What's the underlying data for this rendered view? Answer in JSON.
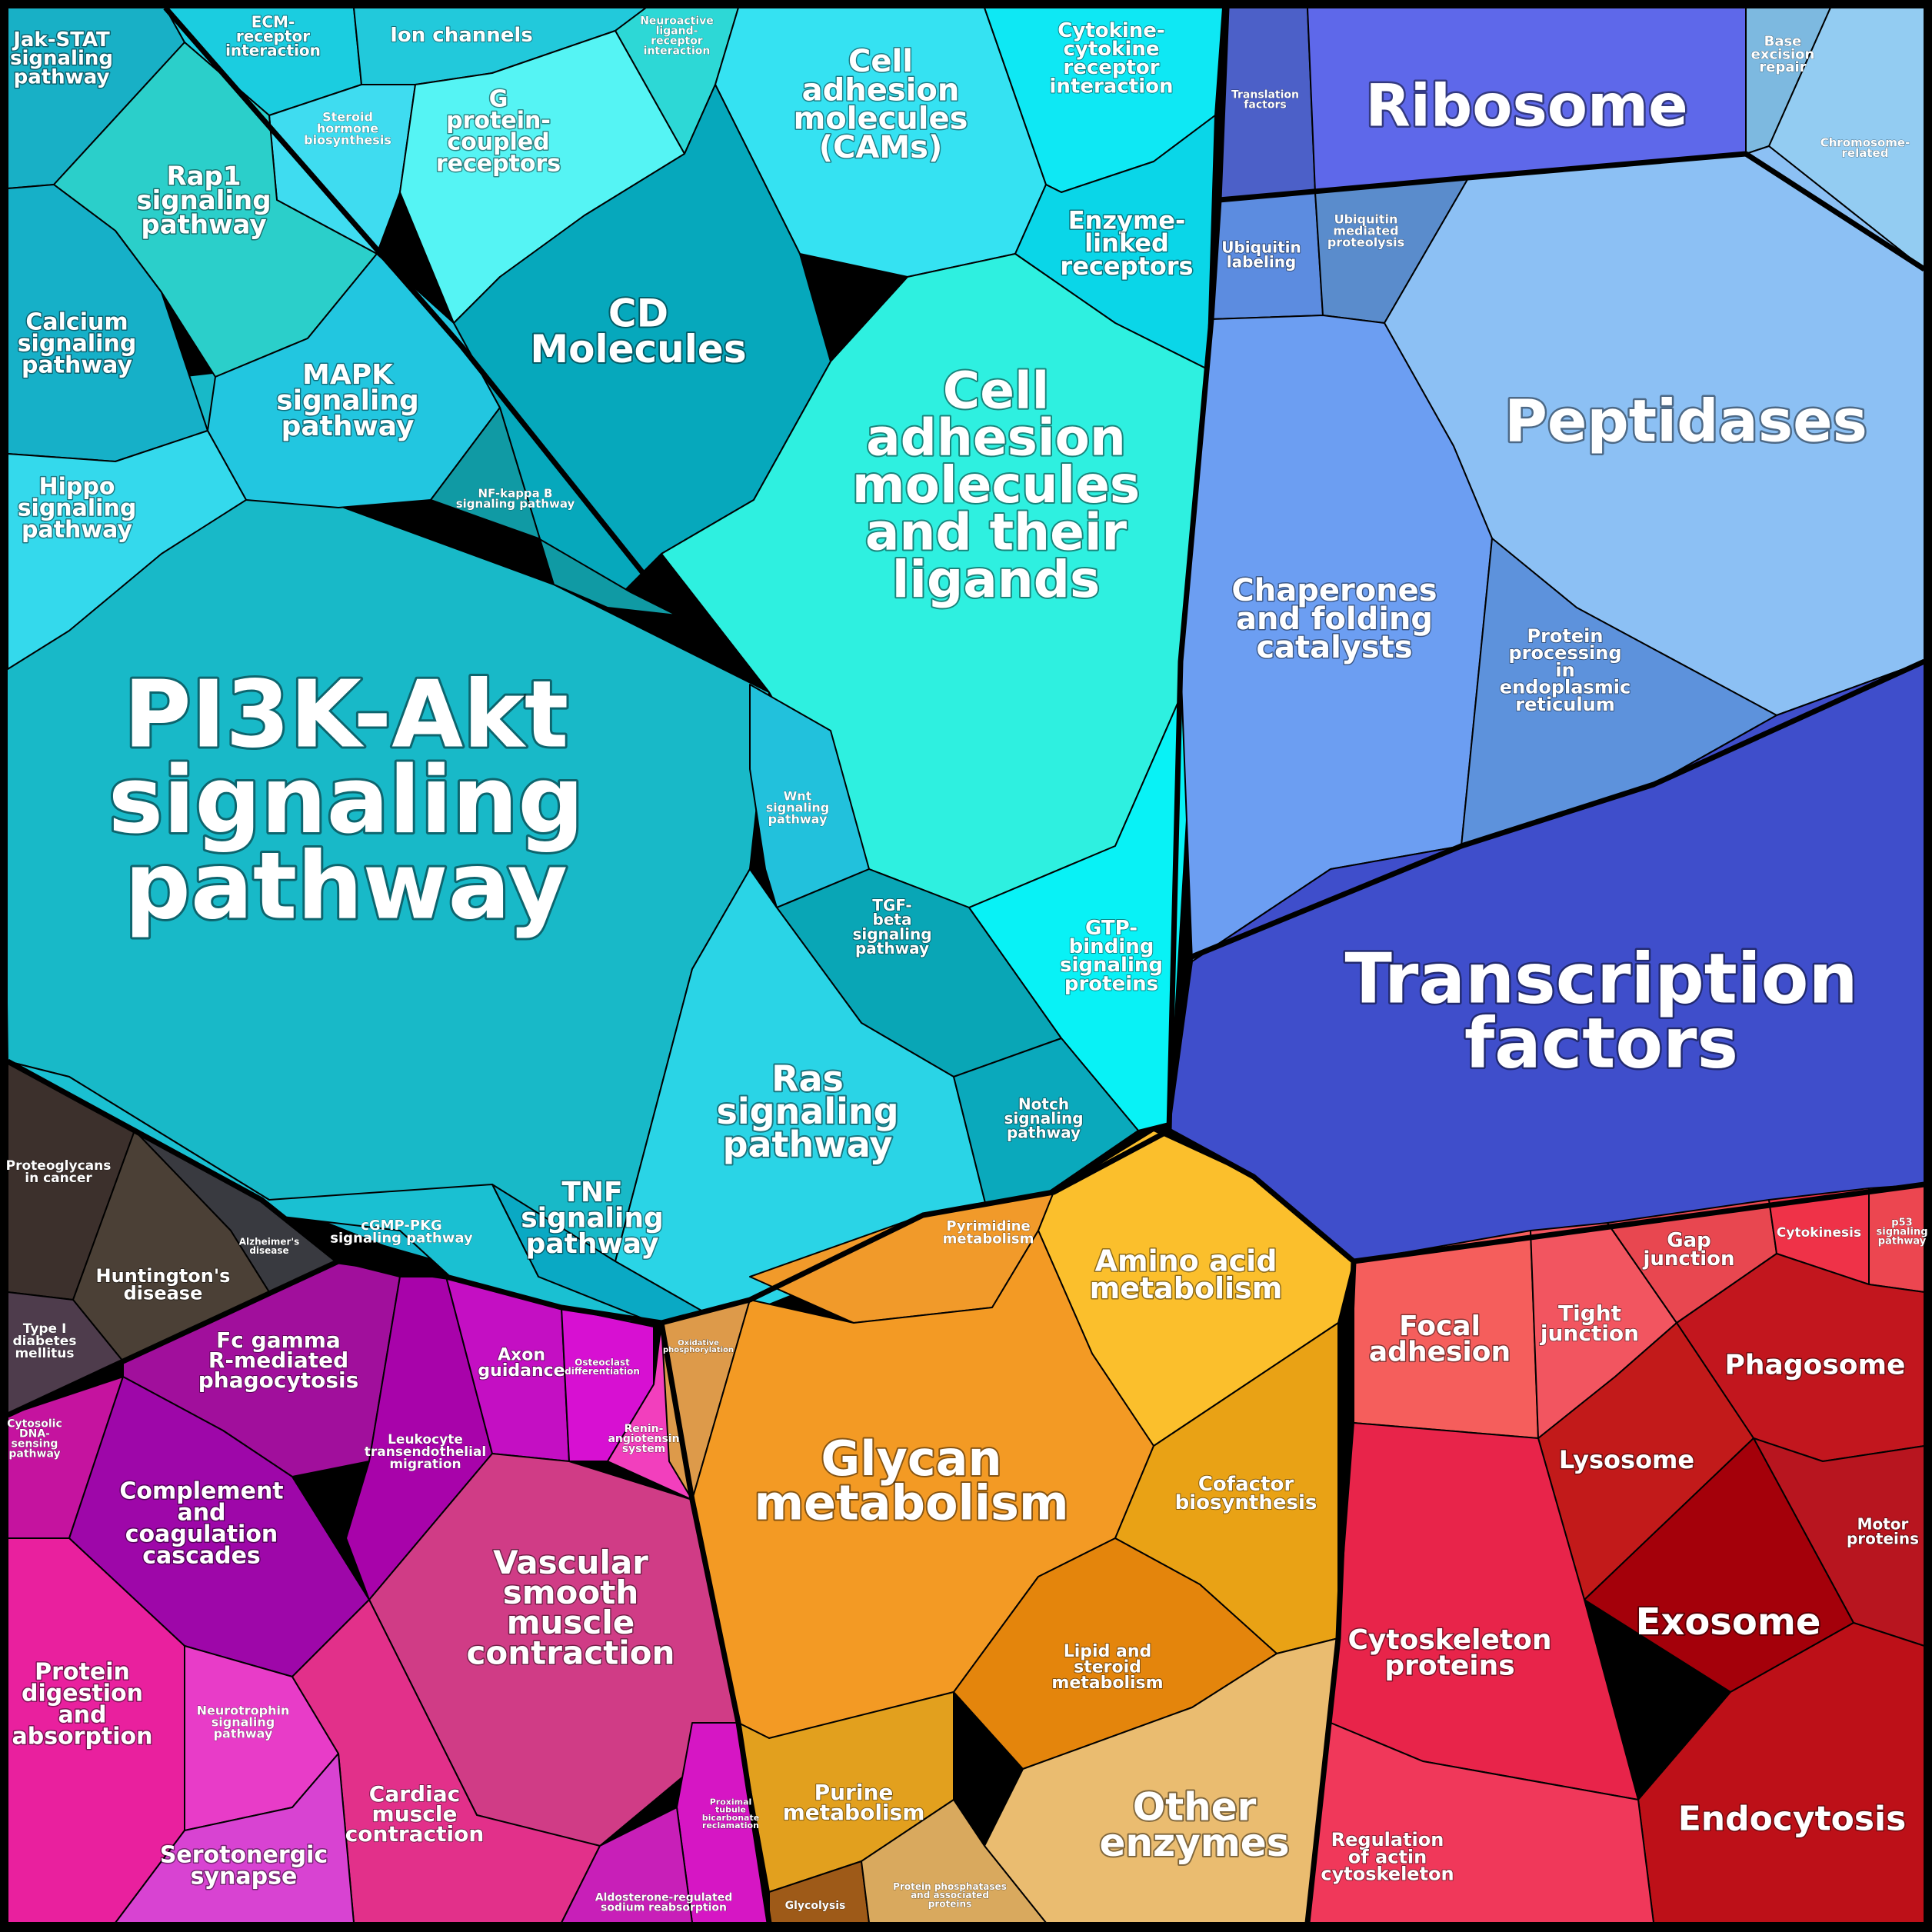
{
  "groups": {
    "signaling": {
      "label": [
        "PI3K-Akt",
        "signaling",
        "pathway"
      ],
      "color": "#1cc3cf",
      "cells": {
        "jak_stat": [
          "Jak-STAT",
          "signaling",
          "pathway"
        ],
        "ecm": [
          "ECM-",
          "receptor",
          "interaction"
        ],
        "ion_channels": [
          "Ion channels"
        ],
        "neuroactive": [
          "Neuroactive",
          "ligand-",
          "receptor",
          "interaction"
        ],
        "steroid_hormone": [
          "Steroid",
          "hormone",
          "biosynthesis"
        ],
        "gpcr": [
          "G",
          "protein-",
          "coupled",
          "receptors"
        ],
        "cams": [
          "Cell",
          "adhesion",
          "molecules",
          "(CAMs)"
        ],
        "cytokine": [
          "Cytokine-",
          "cytokine",
          "receptor",
          "interaction"
        ],
        "enzyme_linked": [
          "Enzyme-",
          "linked",
          "receptors"
        ],
        "rap1": [
          "Rap1",
          "signaling",
          "pathway"
        ],
        "calcium": [
          "Calcium",
          "signaling",
          "pathway"
        ],
        "mapk": [
          "MAPK",
          "signaling",
          "pathway"
        ],
        "cd_molecules": [
          "CD",
          "Molecules"
        ],
        "nfkb": [
          "NF-kappa B",
          "signaling pathway"
        ],
        "cam_ligands": [
          "Cell",
          "adhesion",
          "molecules",
          "and their",
          "ligands"
        ],
        "hippo": [
          "Hippo",
          "signaling",
          "pathway"
        ],
        "wnt": [
          "Wnt",
          "signaling",
          "pathway"
        ],
        "tgf_beta": [
          "TGF-",
          "beta",
          "signaling",
          "pathway"
        ],
        "gtp_binding": [
          "GTP-",
          "binding",
          "signaling",
          "proteins"
        ],
        "ras": [
          "Ras",
          "signaling",
          "pathway"
        ],
        "notch": [
          "Notch",
          "signaling",
          "pathway"
        ],
        "tnf": [
          "TNF",
          "signaling",
          "pathway"
        ],
        "cgmp_pkg": [
          "cGMP-PKG",
          "signaling pathway"
        ]
      }
    },
    "disease": {
      "color": "#3e3030",
      "cells": {
        "proteoglycans": [
          "Proteoglycans",
          "in cancer"
        ],
        "alzheimers": [
          "Alzheimer's",
          "disease"
        ],
        "huntingtons": [
          "Huntington's",
          "disease"
        ],
        "t1d": [
          "Type I",
          "diabetes",
          "mellitus"
        ]
      }
    },
    "organismal": {
      "color": "#c114b8",
      "cells": {
        "fc_gamma": [
          "Fc gamma",
          "R-mediated",
          "phagocytosis"
        ],
        "axon": [
          "Axon",
          "guidance"
        ],
        "osteoclast": [
          "Osteoclast",
          "differentiation"
        ],
        "leukocyte": [
          "Leukocyte",
          "transendothelial",
          "migration"
        ],
        "renin": [
          "Renin-",
          "angiotensin",
          "system"
        ],
        "cytosolic_dna": [
          "Cytosolic",
          "DNA-",
          "sensing",
          "pathway"
        ],
        "complement": [
          "Complement",
          "and",
          "coagulation",
          "cascades"
        ],
        "vascular": [
          "Vascular",
          "smooth",
          "muscle",
          "contraction"
        ],
        "protein_digestion": [
          "Protein",
          "digestion",
          "and",
          "absorption"
        ],
        "neurotrophin": [
          "Neurotrophin",
          "signaling",
          "pathway"
        ],
        "cardiac": [
          "Cardiac",
          "muscle",
          "contraction"
        ],
        "proximal": [
          "Proximal",
          "tubule",
          "bicarbonate",
          "reclamation"
        ],
        "serotonergic": [
          "Serotonergic",
          "synapse"
        ],
        "aldosterone": [
          "Aldosterone-regulated",
          "sodium reabsorption"
        ]
      }
    },
    "metabolism": {
      "color": "#f1a528",
      "cells": {
        "pyrimidine": [
          "Pyrimidine",
          "metabolism"
        ],
        "amino_acid": [
          "Amino acid",
          "metabolism"
        ],
        "oxidative": [
          "Oxidative",
          "phosphorylation"
        ],
        "glycan": [
          "Glycan",
          "metabolism"
        ],
        "cofactor": [
          "Cofactor",
          "biosynthesis"
        ],
        "lipid": [
          "Lipid and",
          "steroid",
          "metabolism"
        ],
        "purine": [
          "Purine",
          "metabolism"
        ],
        "other_enzymes": [
          "Other",
          "enzymes"
        ],
        "glycolysis": [
          "Glycolysis"
        ],
        "protein_phosphatases": [
          "Protein phosphatases",
          "and associated",
          "proteins"
        ]
      }
    },
    "genetic": {
      "color": "#5a63e6",
      "cells": {
        "translation": [
          "Translation",
          "factors"
        ],
        "ribosome": [
          "Ribosome"
        ],
        "ber": [
          "Base",
          "excision",
          "repair"
        ],
        "chromosome": [
          "Chromosome-",
          "related"
        ],
        "ubiquitin_labeling": [
          "Ubiquitin",
          "labeling"
        ],
        "ubiquitin_proteolysis": [
          "Ubiquitin",
          "mediated",
          "proteolysis"
        ],
        "peptidases": [
          "Peptidases"
        ],
        "chaperones": [
          "Chaperones",
          "and folding",
          "catalysts"
        ],
        "protein_er": [
          "Protein",
          "processing",
          "in",
          "endoplasmic",
          "reticulum"
        ],
        "transcription": [
          "Transcription",
          "factors"
        ]
      }
    },
    "cellular": {
      "color": "#d81a2a",
      "cells": {
        "gap": [
          "Gap",
          "junction"
        ],
        "cytokinesis": [
          "Cytokinesis"
        ],
        "p53": [
          "p53",
          "signaling",
          "pathway"
        ],
        "focal": [
          "Focal",
          "adhesion"
        ],
        "tight": [
          "Tight",
          "junction"
        ],
        "phagosome": [
          "Phagosome"
        ],
        "lysosome": [
          "Lysosome"
        ],
        "motor": [
          "Motor",
          "proteins"
        ],
        "cytoskeleton": [
          "Cytoskeleton",
          "proteins"
        ],
        "exosome": [
          "Exosome"
        ],
        "endocytosis": [
          "Endocytosis"
        ],
        "regulation_actin": [
          "Regulation",
          "of actin",
          "cytoskeleton"
        ]
      }
    }
  }
}
